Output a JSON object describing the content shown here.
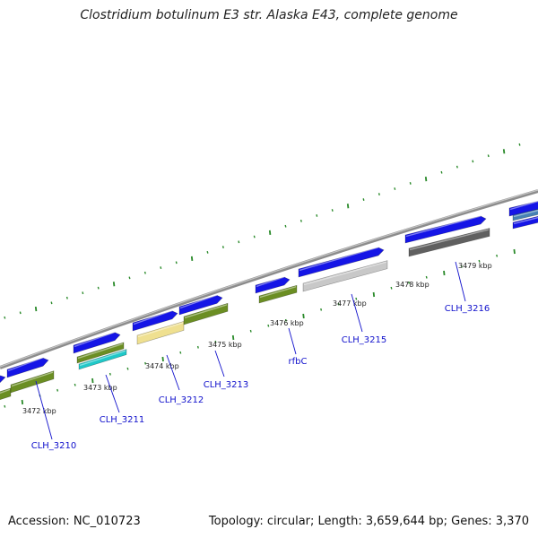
{
  "title": "Clostridium botulinum E3 str. Alaska E43, complete genome",
  "footer": {
    "accession": "Accession: NC_010723",
    "summary": "Topology: circular; Length: 3,659,644 bp; Genes: 3,370"
  },
  "colors": {
    "backbone": "#8c8c8c",
    "forward_gene": "#1515e6",
    "tick": "#2a8a2a",
    "label": "#1010cc"
  },
  "kbp_labels": [
    {
      "text": "3472 kbp"
    },
    {
      "text": "3473 kbp"
    },
    {
      "text": "3474 kbp"
    },
    {
      "text": "3475 kbp"
    },
    {
      "text": "3476 kbp"
    },
    {
      "text": "3477 kbp"
    },
    {
      "text": "3478 kbp"
    },
    {
      "text": "3479 kbp"
    }
  ],
  "genes": [
    {
      "name": "CLH_3210"
    },
    {
      "name": "CLH_3211"
    },
    {
      "name": "CLH_3212"
    },
    {
      "name": "CLH_3213"
    },
    {
      "name": "rfbC"
    },
    {
      "name": "CLH_3215"
    },
    {
      "name": "CLH_3216"
    }
  ],
  "features": [
    {
      "track": "forward",
      "color": "#1515e6"
    },
    {
      "track": "forward",
      "color": "#1515e6"
    },
    {
      "track": "forward",
      "color": "#1515e6"
    },
    {
      "track": "forward",
      "color": "#1515e6"
    },
    {
      "track": "forward",
      "color": "#1515e6"
    },
    {
      "track": "forward",
      "color": "#1515e6"
    },
    {
      "track": "forward",
      "color": "#1515e6"
    },
    {
      "track": "forward",
      "color": "#1515e6"
    },
    {
      "track": "forward",
      "color": "#1515e6"
    },
    {
      "track": "forward",
      "color": "#1515e6"
    },
    {
      "track": "cog",
      "color": "#6b8e23"
    },
    {
      "track": "cog",
      "color": "#6b8e23"
    },
    {
      "track": "cog",
      "color": "#6b8e23"
    },
    {
      "track": "cog",
      "color": "#20c8c8"
    },
    {
      "track": "cog",
      "color": "#efe090"
    },
    {
      "track": "cog",
      "color": "#6b8e23"
    },
    {
      "track": "cog",
      "color": "#6b8e23"
    },
    {
      "track": "cog",
      "color": "#c8c8c8"
    },
    {
      "track": "cog",
      "color": "#606060"
    },
    {
      "track": "cog",
      "color": "#4682b4"
    }
  ]
}
